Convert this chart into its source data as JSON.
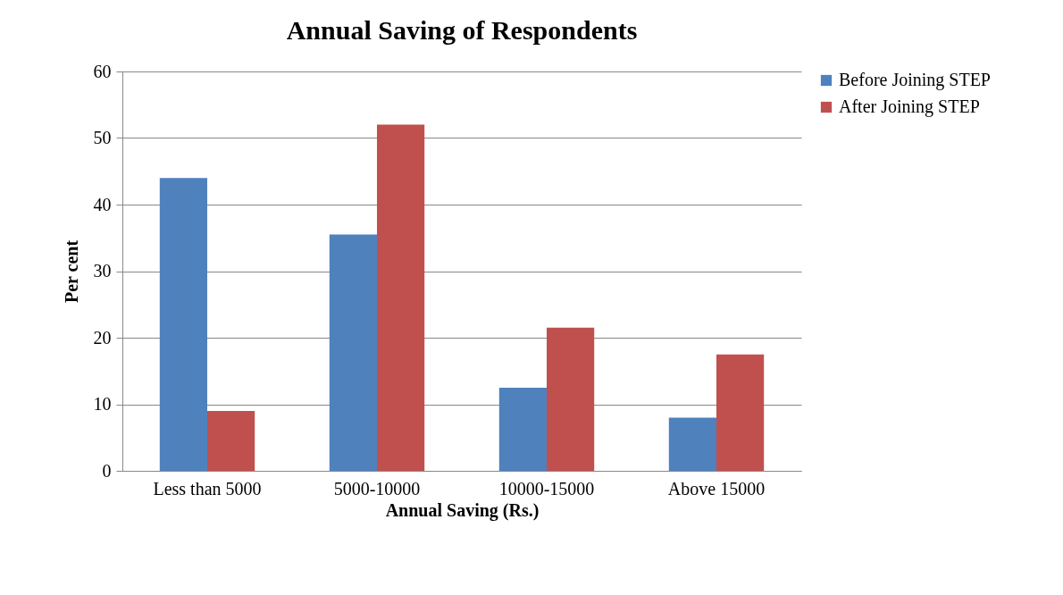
{
  "chart_data": {
    "type": "bar",
    "title": "Annual Saving of Respondents",
    "xlabel": "Annual Saving (Rs.)",
    "ylabel": "Per cent",
    "categories": [
      "Less than 5000",
      "5000-10000",
      "10000-15000",
      "Above 15000"
    ],
    "series": [
      {
        "name": "Before Joining STEP",
        "color": "#4f81bd",
        "values": [
          44,
          35.5,
          12.5,
          8
        ]
      },
      {
        "name": "After Joining STEP",
        "color": "#c0504d",
        "values": [
          9,
          52,
          21.5,
          17.5
        ]
      }
    ],
    "ylim": [
      0,
      60
    ],
    "yticks": [
      0,
      10,
      20,
      30,
      40,
      50,
      60
    ],
    "grid": "y",
    "legend": "right"
  }
}
